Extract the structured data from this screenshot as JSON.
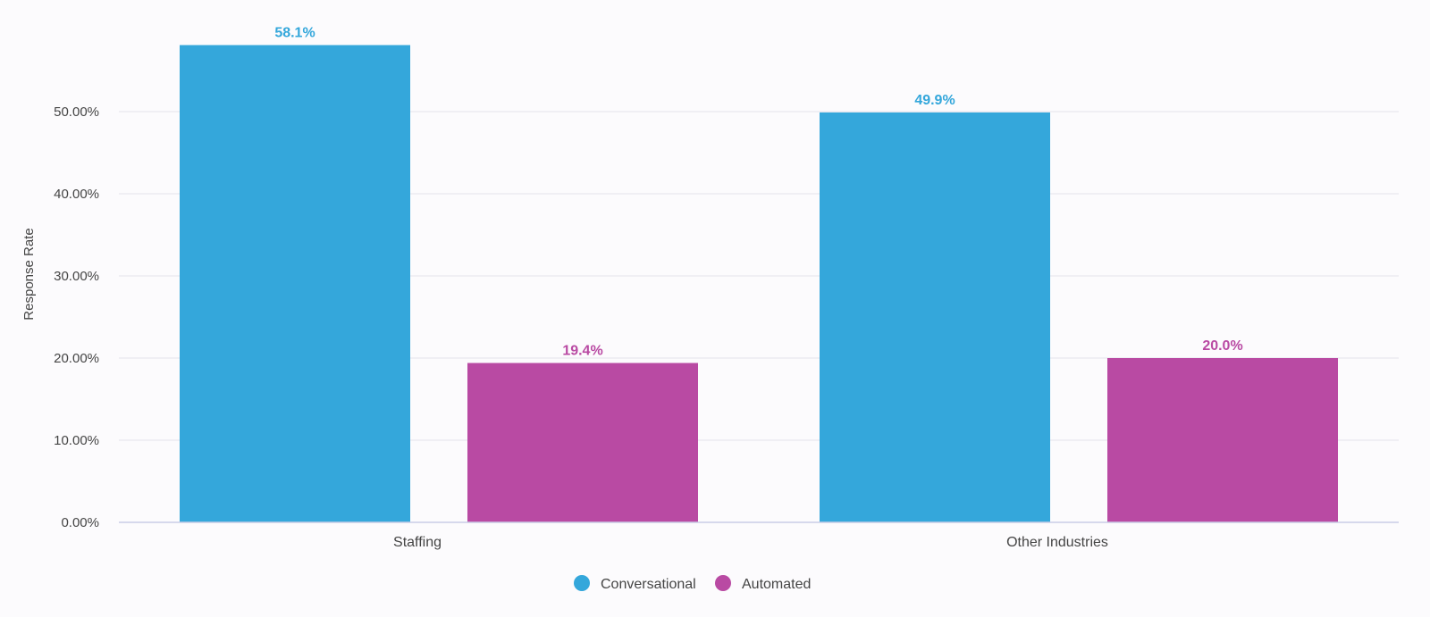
{
  "chart_data": {
    "type": "bar",
    "title": "",
    "xlabel": "",
    "ylabel": "Response Rate",
    "categories": [
      "Staffing",
      "Other Industries"
    ],
    "series": [
      {
        "name": "Conversational",
        "color": "#34a7db",
        "values": [
          58.1,
          49.9
        ],
        "labels": [
          "58.1%",
          "49.9%"
        ]
      },
      {
        "name": "Automated",
        "color": "#b94aa3",
        "values": [
          19.4,
          20.0
        ],
        "labels": [
          "19.4%",
          "20.0%"
        ]
      }
    ],
    "ylim": [
      0,
      60
    ],
    "yticks": [
      0,
      10,
      20,
      30,
      40,
      50
    ],
    "ytick_labels": [
      "0.00%",
      "10.00%",
      "20.00%",
      "30.00%",
      "40.00%",
      "50.00%"
    ],
    "grid": true,
    "legend_position": "bottom-center"
  }
}
